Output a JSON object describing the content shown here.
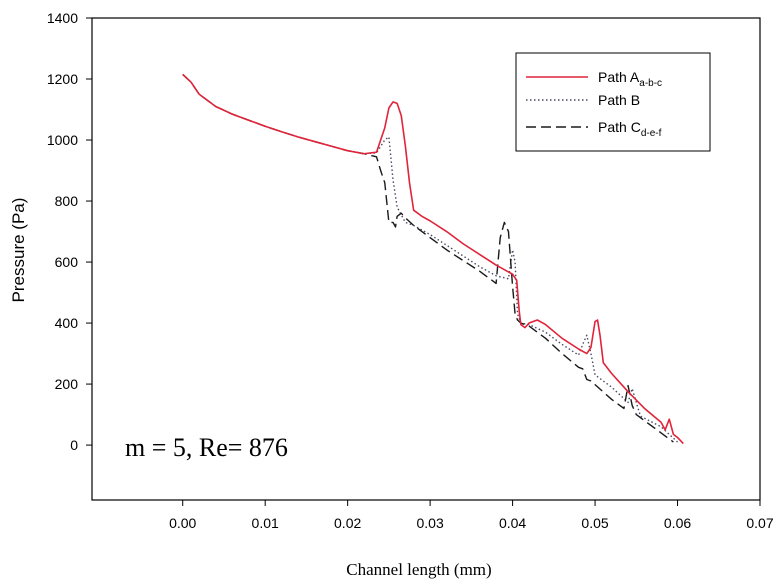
{
  "chart_data": {
    "type": "line",
    "title": "",
    "xlabel": "Channel length (mm)",
    "ylabel": "Pressure (Pa)",
    "xlim": [
      -0.011,
      0.07
    ],
    "ylim": [
      -180,
      1400
    ],
    "x_ticks": [
      "0.00",
      "0.01",
      "0.02",
      "0.03",
      "0.04",
      "0.05",
      "0.06",
      "0.07"
    ],
    "x_tick_values": [
      0,
      0.01,
      0.02,
      0.03,
      0.04,
      0.05,
      0.06,
      0.07
    ],
    "y_ticks": [
      "0",
      "200",
      "400",
      "600",
      "800",
      "1000",
      "1200",
      "1400"
    ],
    "y_tick_values": [
      0,
      200,
      400,
      600,
      800,
      1000,
      1200,
      1400
    ],
    "grid": false,
    "legend_position": "top-right",
    "annotation": "m = 5, Re= 876",
    "series": [
      {
        "name": "Path A",
        "subscript": "a-b-c",
        "color": "#e0243a",
        "style": "solid",
        "x": [
          0.0,
          0.001,
          0.002,
          0.004,
          0.006,
          0.008,
          0.01,
          0.012,
          0.014,
          0.016,
          0.018,
          0.02,
          0.022,
          0.0235,
          0.0245,
          0.025,
          0.0255,
          0.026,
          0.0265,
          0.027,
          0.0275,
          0.028,
          0.029,
          0.03,
          0.032,
          0.034,
          0.036,
          0.038,
          0.04,
          0.0405,
          0.0408,
          0.041,
          0.0415,
          0.042,
          0.043,
          0.044,
          0.046,
          0.048,
          0.049,
          0.0495,
          0.05,
          0.0503,
          0.0506,
          0.051,
          0.052,
          0.054,
          0.056,
          0.058,
          0.0585,
          0.059,
          0.0595,
          0.06,
          0.0607
        ],
        "y": [
          1215,
          1190,
          1150,
          1110,
          1085,
          1065,
          1045,
          1027,
          1010,
          995,
          980,
          965,
          955,
          960,
          1040,
          1105,
          1125,
          1120,
          1080,
          980,
          860,
          770,
          750,
          735,
          700,
          660,
          625,
          590,
          560,
          540,
          440,
          395,
          385,
          400,
          410,
          395,
          350,
          315,
          300,
          320,
          405,
          410,
          360,
          270,
          235,
          175,
          120,
          75,
          50,
          85,
          35,
          25,
          5
        ]
      },
      {
        "name": "Path B",
        "subscript": "",
        "color": "#4a4a66",
        "style": "dotted",
        "x": [
          0.0,
          0.001,
          0.002,
          0.004,
          0.006,
          0.008,
          0.01,
          0.012,
          0.014,
          0.016,
          0.018,
          0.02,
          0.022,
          0.0235,
          0.0245,
          0.025,
          0.0255,
          0.026,
          0.027,
          0.028,
          0.03,
          0.032,
          0.034,
          0.036,
          0.038,
          0.0395,
          0.04,
          0.0403,
          0.0406,
          0.041,
          0.042,
          0.044,
          0.046,
          0.048,
          0.0485,
          0.049,
          0.0495,
          0.05,
          0.052,
          0.054,
          0.0545,
          0.055,
          0.0555,
          0.058,
          0.06
        ],
        "y": [
          1215,
          1190,
          1150,
          1110,
          1085,
          1065,
          1045,
          1027,
          1010,
          995,
          980,
          965,
          955,
          958,
          1000,
          1010,
          870,
          780,
          730,
          720,
          690,
          655,
          620,
          585,
          555,
          545,
          640,
          600,
          430,
          400,
          395,
          370,
          330,
          295,
          330,
          360,
          300,
          230,
          190,
          140,
          185,
          140,
          95,
          60,
          10
        ]
      },
      {
        "name": "Path C",
        "subscript": "d-e-f",
        "color": "#1a1a1a",
        "style": "dashed",
        "x": [
          0.0,
          0.001,
          0.002,
          0.004,
          0.006,
          0.008,
          0.01,
          0.012,
          0.014,
          0.016,
          0.018,
          0.02,
          0.022,
          0.0235,
          0.024,
          0.0245,
          0.025,
          0.0255,
          0.0258,
          0.026,
          0.0265,
          0.027,
          0.028,
          0.03,
          0.032,
          0.034,
          0.036,
          0.038,
          0.0385,
          0.039,
          0.0395,
          0.04,
          0.0403,
          0.0406,
          0.041,
          0.042,
          0.044,
          0.046,
          0.048,
          0.0485,
          0.049,
          0.0495,
          0.052,
          0.0535,
          0.054,
          0.0545,
          0.055,
          0.057,
          0.059,
          0.0595
        ],
        "y": [
          1215,
          1190,
          1150,
          1110,
          1085,
          1065,
          1045,
          1027,
          1010,
          995,
          980,
          965,
          955,
          945,
          900,
          860,
          730,
          730,
          715,
          750,
          760,
          745,
          720,
          680,
          640,
          605,
          570,
          530,
          680,
          730,
          700,
          520,
          430,
          410,
          400,
          390,
          350,
          300,
          255,
          250,
          215,
          210,
          150,
          120,
          195,
          130,
          100,
          60,
          20,
          10
        ]
      }
    ]
  }
}
